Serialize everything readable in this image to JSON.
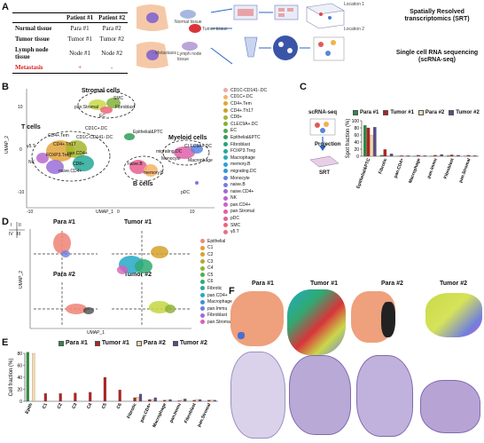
{
  "panel_labels": {
    "a": "A",
    "b": "B",
    "c": "C",
    "d": "D",
    "e": "E",
    "f": "F"
  },
  "panelA": {
    "table": {
      "headers": [
        "Patient #1",
        "Patient #2"
      ],
      "rows": [
        {
          "label": "Normal tissue",
          "p1": "Para #1",
          "p2": "Para #2"
        },
        {
          "label": "Tumor tissue",
          "p1": "Tumor #1",
          "p2": "Tumor #2"
        },
        {
          "label": "Lymph node tissue",
          "p1": "Node #1",
          "p2": "Node #2"
        },
        {
          "label": "Metastasis",
          "p1": "+",
          "p2": "-"
        }
      ]
    },
    "workflow": {
      "metastasis": "- Metastasis",
      "normal": "Normal tissue",
      "tumor": "Tumor tissue",
      "lymph": "Lymph node tissue",
      "location1": "Location 1",
      "location2": "Location 2",
      "srt": "Spatially Resolved transcriptomics (SRT)",
      "scrna": "Single cell RNA sequencing (scRNA-seq)",
      "umap1": "UMAP_1",
      "umap2": "UMAP_2"
    }
  },
  "panelB": {
    "xlabel": "UMAP_1",
    "ylabel": "UMAP_2",
    "ticks_x": [
      "-10",
      "0",
      "10"
    ],
    "ticks_y": [
      "-10",
      "0",
      "10"
    ],
    "groups": [
      "Stromal cells",
      "T cells",
      "Myeloid cells",
      "B cells"
    ],
    "cluster_labels": [
      "SMC",
      "Fibroblast",
      "pan.Stromal",
      "EC",
      "Epithelial&PTC",
      "CD4+.Tem",
      "CD4+.Th17",
      "FOXP3.Treg",
      "CD1C-CD141-.DC",
      "CD1C+.DC",
      "NK",
      "pan.CD4+",
      "naive.CD4+",
      "migrating.DC",
      "CLEC9A+.DC",
      "Monocyte",
      "Macrophage",
      "naive.B",
      "memory.B",
      "pDC",
      "γδ.T",
      "CD8+"
    ],
    "legend": [
      {
        "name": "CD1C-CD141-.DC",
        "color": "#f4a6a6"
      },
      {
        "name": "CD1C+.DC",
        "color": "#f7b267"
      },
      {
        "name": "CD4+.Tem",
        "color": "#e3a53a"
      },
      {
        "name": "CD4+.Th17",
        "color": "#c9a227"
      },
      {
        "name": "CD8+",
        "color": "#a6b62c"
      },
      {
        "name": "CLEC9A+.DC",
        "color": "#7fb23a"
      },
      {
        "name": "EC",
        "color": "#54a84a"
      },
      {
        "name": "Epithelial&PTC",
        "color": "#2f9e55"
      },
      {
        "name": "Fibroblast",
        "color": "#27a37a"
      },
      {
        "name": "FOXP3.Treg",
        "color": "#27a898"
      },
      {
        "name": "Macrophage",
        "color": "#2aaab6"
      },
      {
        "name": "memory.B",
        "color": "#2ba3cf"
      },
      {
        "name": "migrating.DC",
        "color": "#3594dd"
      },
      {
        "name": "Monocyte",
        "color": "#5b86e0"
      },
      {
        "name": "naive.B",
        "color": "#7c79df"
      },
      {
        "name": "naive.CD4+",
        "color": "#9a6fd9"
      },
      {
        "name": "NK",
        "color": "#b767cf"
      },
      {
        "name": "pan.CD4+",
        "color": "#cf63c0"
      },
      {
        "name": "pan.Stromal",
        "color": "#df5fa8"
      },
      {
        "name": "pDC",
        "color": "#e85f8f"
      },
      {
        "name": "SMC",
        "color": "#ec6575"
      },
      {
        "name": "γδ.T",
        "color": "#e9707a"
      }
    ]
  },
  "panelC": {
    "scrna_label": "scRNA-seq",
    "projection": "Projection",
    "srt": "SRT"
  },
  "panelD": {
    "quadrants": [
      "I",
      "II",
      "III",
      "IV"
    ],
    "titles": [
      "Para #1",
      "Tumor #1",
      "Para #2",
      "Tumor #2"
    ],
    "xlabel": "UMAP_1",
    "ylabel": "UMAP_2",
    "legend": [
      {
        "name": "Epithelial",
        "color": "#f08a7e"
      },
      {
        "name": "C1",
        "color": "#e89a3c"
      },
      {
        "name": "C2",
        "color": "#d6a12a"
      },
      {
        "name": "C3",
        "color": "#b8a82a"
      },
      {
        "name": "C4",
        "color": "#8fb23a"
      },
      {
        "name": "C5",
        "color": "#52b04a"
      },
      {
        "name": "C6",
        "color": "#2faa72"
      },
      {
        "name": "Fibrotic",
        "color": "#26a9a0"
      },
      {
        "name": "pan.CD4+",
        "color": "#25a8c8"
      },
      {
        "name": "Macrophage",
        "color": "#3e8fdc"
      },
      {
        "name": "pan.Immu",
        "color": "#6e7ee0"
      },
      {
        "name": "Fibroblast",
        "color": "#a36ad9"
      },
      {
        "name": "pan.Stromal",
        "color": "#d95fb8"
      }
    ]
  },
  "chart_data": [
    {
      "type": "bar",
      "panel": "C",
      "title": "",
      "xlabel": "",
      "ylabel": "Spot fraction (%)",
      "ylim": [
        0,
        100
      ],
      "yticks": [
        "0",
        "20",
        "40",
        "60",
        "80",
        "100"
      ],
      "legend_position": "top",
      "categories": [
        "Epithelial&PTC",
        "Fibrotic",
        "pan.CD4+",
        "Macrophage",
        "pan.Immu",
        "Fibroblast",
        "pan.Stromal"
      ],
      "series": [
        {
          "name": "Para #1",
          "color": "#2e8b3e",
          "values": [
            87,
            3,
            1,
            1,
            1,
            2,
            1
          ]
        },
        {
          "name": "Tumor #1",
          "color": "#b22222",
          "values": [
            80,
            19,
            2,
            3,
            3,
            4,
            3
          ]
        },
        {
          "name": "Para #2",
          "color": "#f3d9a8",
          "values": [
            60,
            2,
            1,
            1,
            1,
            1,
            1
          ]
        },
        {
          "name": "Tumor #2",
          "color": "#5b4b8a",
          "values": [
            82,
            7,
            2,
            2,
            5,
            3,
            2
          ]
        }
      ]
    },
    {
      "type": "bar",
      "panel": "E",
      "title": "",
      "xlabel": "",
      "ylabel": "Cell fraction (%)",
      "ylim": [
        0,
        80
      ],
      "yticks": [
        "0",
        "20",
        "40",
        "60",
        "80"
      ],
      "legend_position": "top",
      "categories": [
        "Epith",
        "C1",
        "C2",
        "C3",
        "C4",
        "C5",
        "C6",
        "Fibrotic",
        "pan.CD4+",
        "Macrophage",
        "pan.Immu",
        "Fibroblast",
        "pan.Stromal"
      ],
      "series": [
        {
          "name": "Para #1",
          "color": "#2e8b3e",
          "values": [
            82,
            0,
            0,
            0,
            0,
            0,
            0,
            0,
            0,
            0,
            0,
            0,
            0
          ]
        },
        {
          "name": "Tumor #1",
          "color": "#b22222",
          "values": [
            0,
            13,
            13,
            14,
            15,
            40,
            19,
            6,
            3,
            2,
            1,
            2,
            2
          ]
        },
        {
          "name": "Para #2",
          "color": "#f3d9a8",
          "values": [
            80,
            0,
            0,
            0,
            0,
            0,
            0,
            7,
            3,
            2,
            2,
            3,
            2
          ]
        },
        {
          "name": "Tumor #2",
          "color": "#5b4b8a",
          "values": [
            0,
            0,
            0,
            0,
            0,
            0,
            0,
            12,
            6,
            3,
            4,
            3,
            2
          ]
        }
      ]
    }
  ]
}
